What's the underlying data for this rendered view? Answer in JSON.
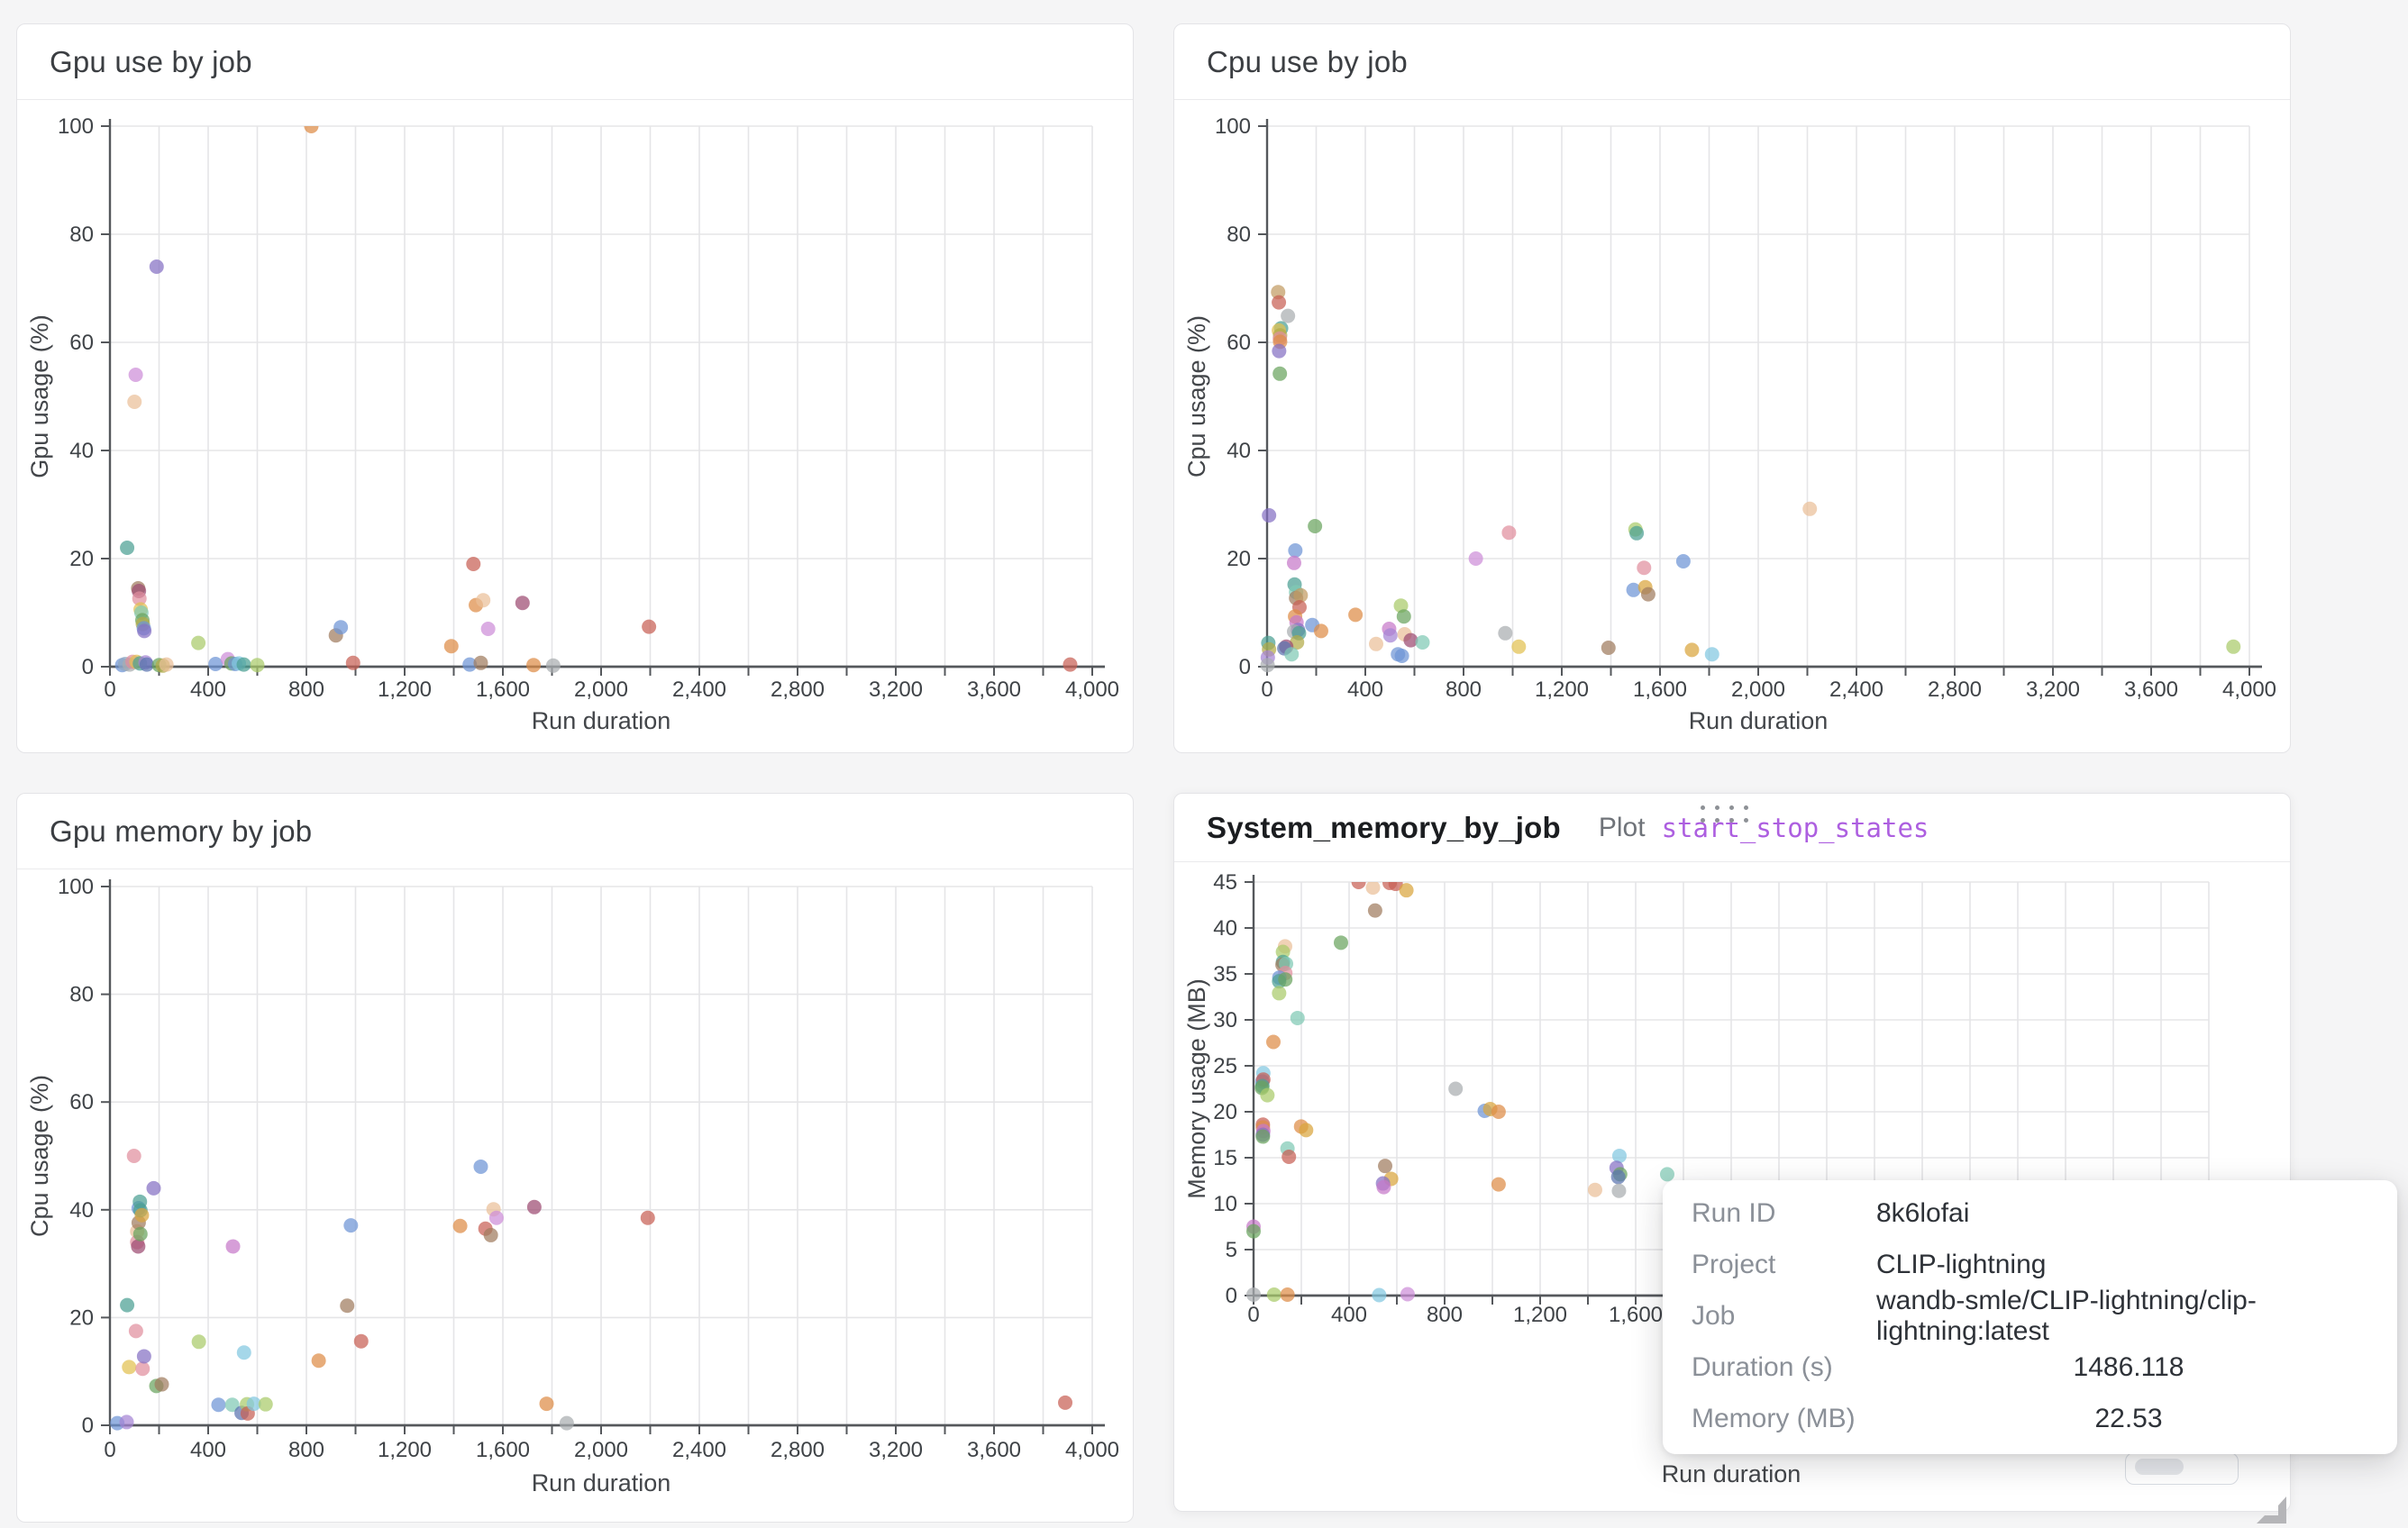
{
  "page": {
    "background": "#f5f5f6"
  },
  "palette": {
    "blue": "#6d94d6",
    "navy": "#5b74b0",
    "steel": "#8fa6c0",
    "cyan": "#82c7e0",
    "teal": "#4ba093",
    "mint": "#80c9b4",
    "green": "#69a45e",
    "lightgreen": "#a9ca69",
    "olive": "#b3aa48",
    "yellow": "#e2c050",
    "gold": "#d9a53d",
    "orange": "#de8c46",
    "peach": "#eabf98",
    "tan": "#c29b63",
    "brown": "#9f7b5e",
    "red": "#c75f55",
    "rose": "#e18f9e",
    "maroon": "#9d4b71",
    "magenta": "#c678c9",
    "orchid": "#cd8ed8",
    "purple": "#8570c3",
    "violet": "#a583d4",
    "gray": "#a9adb0"
  },
  "panel4_header": {
    "plot_label": "Plot",
    "plot_link": "start_stop_states"
  },
  "tooltip": {
    "rows": [
      {
        "label": "Run ID",
        "value": "8k6lofai",
        "numeric": false
      },
      {
        "label": "Project",
        "value": "CLIP-lightning",
        "numeric": false
      },
      {
        "label": "Job",
        "value": "wandb-smle/CLIP-lightning/clip-lightning:latest",
        "numeric": false
      },
      {
        "label": "Duration (s)",
        "value": "1486.118",
        "numeric": true
      },
      {
        "label": "Memory (MB)",
        "value": "22.53",
        "numeric": true
      }
    ]
  },
  "chart_data": [
    {
      "type": "scatter",
      "title": "Gpu use by job",
      "xlabel": "Run duration",
      "ylabel": "Gpu usage (%)",
      "xlim": [
        0,
        4000
      ],
      "ylim": [
        0,
        100
      ],
      "x_grid_step": 200,
      "x_label_step": 400,
      "y_step": 20,
      "grid": true,
      "legend": "none",
      "points": [
        [
          50,
          0.3,
          "blue"
        ],
        [
          62,
          0.5,
          "steel"
        ],
        [
          70,
          22,
          "teal"
        ],
        [
          80,
          0.4,
          "gray"
        ],
        [
          92,
          0.9,
          "rose"
        ],
        [
          100,
          49,
          "peach"
        ],
        [
          105,
          54,
          "orchid"
        ],
        [
          108,
          0.9,
          "yellow"
        ],
        [
          115,
          14.5,
          "brown"
        ],
        [
          118,
          14,
          "maroon"
        ],
        [
          120,
          12.6,
          "rose"
        ],
        [
          122,
          0.6,
          "teal"
        ],
        [
          125,
          10.6,
          "yellow"
        ],
        [
          128,
          10,
          "mint"
        ],
        [
          132,
          8.6,
          "green"
        ],
        [
          134,
          7.9,
          "olive"
        ],
        [
          138,
          7.1,
          "blue"
        ],
        [
          140,
          6.6,
          "purple"
        ],
        [
          145,
          0.8,
          "violet"
        ],
        [
          150,
          0.4,
          "navy"
        ],
        [
          190,
          74,
          "purple"
        ],
        [
          200,
          0.3,
          "green"
        ],
        [
          215,
          0.2,
          "olive"
        ],
        [
          230,
          0.4,
          "peach"
        ],
        [
          360,
          4.4,
          "lightgreen"
        ],
        [
          430,
          0.5,
          "blue"
        ],
        [
          480,
          1.4,
          "orchid"
        ],
        [
          495,
          0.6,
          "green"
        ],
        [
          510,
          0.5,
          "blue"
        ],
        [
          525,
          0.6,
          "cyan"
        ],
        [
          545,
          0.4,
          "teal"
        ],
        [
          600,
          0.3,
          "lightgreen"
        ],
        [
          820,
          100,
          "orange"
        ],
        [
          920,
          5.8,
          "brown"
        ],
        [
          940,
          7.3,
          "blue"
        ],
        [
          990,
          0.7,
          "red"
        ],
        [
          1390,
          3.8,
          "orange"
        ],
        [
          1465,
          0.4,
          "blue"
        ],
        [
          1480,
          19,
          "red"
        ],
        [
          1490,
          11.4,
          "orange"
        ],
        [
          1510,
          0.7,
          "brown"
        ],
        [
          1520,
          12.3,
          "peach"
        ],
        [
          1540,
          7,
          "orchid"
        ],
        [
          1680,
          11.8,
          "maroon"
        ],
        [
          1725,
          0.3,
          "orange"
        ],
        [
          1805,
          0.2,
          "gray"
        ],
        [
          2195,
          7.4,
          "red"
        ],
        [
          3910,
          0.4,
          "red"
        ]
      ]
    },
    {
      "type": "scatter",
      "title": "Cpu use by job",
      "xlabel": "Run duration",
      "ylabel": "Cpu usage (%)",
      "xlim": [
        0,
        4000
      ],
      "ylim": [
        0,
        100
      ],
      "x_grid_step": 200,
      "x_label_step": 400,
      "y_step": 20,
      "grid": true,
      "legend": "none",
      "points": [
        [
          45,
          69.3,
          "tan"
        ],
        [
          48,
          67.4,
          "red"
        ],
        [
          85,
          64.9,
          "gray"
        ],
        [
          57,
          62.6,
          "teal"
        ],
        [
          48,
          62.2,
          "yellow"
        ],
        [
          53,
          61.3,
          "olive"
        ],
        [
          52,
          60.7,
          "rose"
        ],
        [
          53,
          60.1,
          "orange"
        ],
        [
          49,
          58.4,
          "purple"
        ],
        [
          52,
          54.2,
          "green"
        ],
        [
          8,
          28,
          "purple"
        ],
        [
          195,
          26,
          "green"
        ],
        [
          115,
          21.5,
          "blue"
        ],
        [
          110,
          19.2,
          "magenta"
        ],
        [
          112,
          15.2,
          "teal"
        ],
        [
          118,
          13.8,
          "mint"
        ],
        [
          118,
          12.7,
          "brown"
        ],
        [
          137,
          13.2,
          "tan"
        ],
        [
          132,
          11,
          "red"
        ],
        [
          114,
          9.3,
          "orange"
        ],
        [
          120,
          8.2,
          "magenta"
        ],
        [
          126,
          6.8,
          "purple"
        ],
        [
          184,
          7.7,
          "blue"
        ],
        [
          110,
          6.5,
          "gray"
        ],
        [
          130,
          6.2,
          "teal"
        ],
        [
          220,
          6.6,
          "orange"
        ],
        [
          122,
          4.5,
          "olive"
        ],
        [
          78,
          3.7,
          "maroon"
        ],
        [
          70,
          3.4,
          "navy"
        ],
        [
          100,
          2.3,
          "mint"
        ],
        [
          5,
          4.4,
          "teal"
        ],
        [
          8,
          3.2,
          "olive"
        ],
        [
          3,
          1.7,
          "violet"
        ],
        [
          2,
          0.3,
          "gray"
        ],
        [
          360,
          9.6,
          "orange"
        ],
        [
          545,
          11.3,
          "lightgreen"
        ],
        [
          557,
          9.3,
          "green"
        ],
        [
          497,
          7,
          "magenta"
        ],
        [
          502,
          5.8,
          "violet"
        ],
        [
          560,
          6,
          "peach"
        ],
        [
          585,
          4.9,
          "maroon"
        ],
        [
          633,
          4.5,
          "mint"
        ],
        [
          444,
          4.2,
          "peach"
        ],
        [
          533,
          2.3,
          "blue"
        ],
        [
          549,
          2,
          "blue"
        ],
        [
          850,
          20,
          "orchid"
        ],
        [
          985,
          24.8,
          "rose"
        ],
        [
          970,
          6.2,
          "gray"
        ],
        [
          1025,
          3.7,
          "yellow"
        ],
        [
          1390,
          3.5,
          "brown"
        ],
        [
          1500,
          25.4,
          "lightgreen"
        ],
        [
          1505,
          24.7,
          "teal"
        ],
        [
          1535,
          18.3,
          "rose"
        ],
        [
          1492,
          14.2,
          "blue"
        ],
        [
          1540,
          14.7,
          "gold"
        ],
        [
          1552,
          13.4,
          "brown"
        ],
        [
          1695,
          19.5,
          "blue"
        ],
        [
          1730,
          3.1,
          "gold"
        ],
        [
          1812,
          2.3,
          "cyan"
        ],
        [
          2210,
          29.2,
          "peach"
        ],
        [
          3935,
          3.7,
          "lightgreen"
        ]
      ]
    },
    {
      "type": "scatter",
      "title": "Gpu memory by job",
      "xlabel": "Run duration",
      "ylabel": "Cpu usage (%)",
      "xlim": [
        0,
        4000
      ],
      "ylim": [
        0,
        100
      ],
      "x_grid_step": 200,
      "x_label_step": 400,
      "y_step": 20,
      "grid": true,
      "legend": "none",
      "points": [
        [
          30,
          0.4,
          "blue"
        ],
        [
          68,
          0.6,
          "violet"
        ],
        [
          70,
          22.3,
          "teal"
        ],
        [
          78,
          10.8,
          "yellow"
        ],
        [
          98,
          50,
          "rose"
        ],
        [
          106,
          17.5,
          "rose"
        ],
        [
          111,
          36,
          "peach"
        ],
        [
          111,
          34,
          "rose"
        ],
        [
          115,
          33.2,
          "maroon"
        ],
        [
          117,
          40.3,
          "blue"
        ],
        [
          117,
          37.6,
          "brown"
        ],
        [
          122,
          41.5,
          "teal"
        ],
        [
          124,
          39.9,
          "teal"
        ],
        [
          124,
          35.5,
          "green"
        ],
        [
          130,
          39,
          "gold"
        ],
        [
          133,
          10.5,
          "rose"
        ],
        [
          139,
          12.8,
          "purple"
        ],
        [
          178,
          44,
          "purple"
        ],
        [
          189,
          7.3,
          "green"
        ],
        [
          211,
          7.6,
          "brown"
        ],
        [
          362,
          15.5,
          "lightgreen"
        ],
        [
          442,
          3.8,
          "blue"
        ],
        [
          498,
          3.8,
          "mint"
        ],
        [
          501,
          33.2,
          "magenta"
        ],
        [
          536,
          2.3,
          "navy"
        ],
        [
          546,
          13.5,
          "cyan"
        ],
        [
          558,
          3.9,
          "lightgreen"
        ],
        [
          561,
          2.2,
          "red"
        ],
        [
          586,
          4,
          "cyan"
        ],
        [
          634,
          3.9,
          "lightgreen"
        ],
        [
          850,
          12,
          "orange"
        ],
        [
          966,
          22.2,
          "brown"
        ],
        [
          981,
          37.1,
          "blue"
        ],
        [
          1023,
          15.6,
          "red"
        ],
        [
          1426,
          37,
          "orange"
        ],
        [
          1510,
          48,
          "blue"
        ],
        [
          1529,
          36.5,
          "red"
        ],
        [
          1551,
          35.3,
          "brown"
        ],
        [
          1562,
          40.1,
          "peach"
        ],
        [
          1574,
          38.5,
          "orchid"
        ],
        [
          1728,
          40.5,
          "maroon"
        ],
        [
          1778,
          4,
          "orange"
        ],
        [
          1860,
          0.4,
          "gray"
        ],
        [
          2190,
          38.5,
          "red"
        ],
        [
          3890,
          4.2,
          "red"
        ]
      ]
    },
    {
      "type": "scatter",
      "title": "System_memory_by_job",
      "xlabel": "Run duration",
      "ylabel": "Memory usage (MB)",
      "xlim": [
        0,
        4000
      ],
      "ylim": [
        0,
        45
      ],
      "x_grid_step": 200,
      "x_label_step": 400,
      "y_step": 5,
      "grid": true,
      "legend": "none",
      "points": [
        [
          440,
          45,
          "red"
        ],
        [
          500,
          44.4,
          "peach"
        ],
        [
          570,
          44.9,
          "red"
        ],
        [
          595,
          44.8,
          "red"
        ],
        [
          640,
          44.1,
          "gold"
        ],
        [
          509,
          41.9,
          "brown"
        ],
        [
          366,
          38.4,
          "green"
        ],
        [
          132,
          38,
          "peach"
        ],
        [
          123,
          37.4,
          "lightgreen"
        ],
        [
          123,
          36.3,
          "teal"
        ],
        [
          121,
          36,
          "brown"
        ],
        [
          136,
          36.1,
          "mint"
        ],
        [
          133,
          35.1,
          "rose"
        ],
        [
          108,
          34.6,
          "blue"
        ],
        [
          107,
          34.2,
          "teal"
        ],
        [
          133,
          34.4,
          "green"
        ],
        [
          107,
          32.9,
          "lightgreen"
        ],
        [
          184,
          30.2,
          "mint"
        ],
        [
          83,
          27.6,
          "orange"
        ],
        [
          41,
          24.2,
          "cyan"
        ],
        [
          37,
          23.3,
          "blue"
        ],
        [
          41,
          23.5,
          "red"
        ],
        [
          37,
          22.8,
          "teal"
        ],
        [
          35,
          22.6,
          "green"
        ],
        [
          58,
          21.8,
          "lightgreen"
        ],
        [
          846,
          22.5,
          "gray"
        ],
        [
          968,
          20.1,
          "blue"
        ],
        [
          991,
          20.3,
          "gold"
        ],
        [
          1026,
          20,
          "orange"
        ],
        [
          1026,
          12.1,
          "orange"
        ],
        [
          39,
          18.6,
          "red"
        ],
        [
          39,
          18.3,
          "orange"
        ],
        [
          41,
          17.9,
          "magenta"
        ],
        [
          39,
          17.5,
          "purple"
        ],
        [
          39,
          17.3,
          "green"
        ],
        [
          199,
          18.4,
          "orange"
        ],
        [
          220,
          18,
          "gold"
        ],
        [
          142,
          16,
          "mint"
        ],
        [
          148,
          15.1,
          "red"
        ],
        [
          551,
          14.1,
          "brown"
        ],
        [
          576,
          12.7,
          "gold"
        ],
        [
          542,
          12.2,
          "purple"
        ],
        [
          545,
          11.8,
          "magenta"
        ],
        [
          1430,
          11.5,
          "peach"
        ],
        [
          0,
          7.5,
          "magenta"
        ],
        [
          0,
          7,
          "green"
        ],
        [
          0,
          0.1,
          "gray"
        ],
        [
          86,
          0.1,
          "lightgreen"
        ],
        [
          142,
          0.1,
          "orange"
        ],
        [
          526,
          0.05,
          "cyan"
        ],
        [
          645,
          0.15,
          "orchid"
        ],
        [
          1532,
          15.2,
          "cyan"
        ],
        [
          1520,
          13.9,
          "purple"
        ],
        [
          1535,
          13.2,
          "green"
        ],
        [
          1527,
          12.9,
          "navy"
        ],
        [
          1530,
          11.4,
          "gray"
        ],
        [
          1732,
          13.2,
          "mint"
        ]
      ]
    }
  ]
}
